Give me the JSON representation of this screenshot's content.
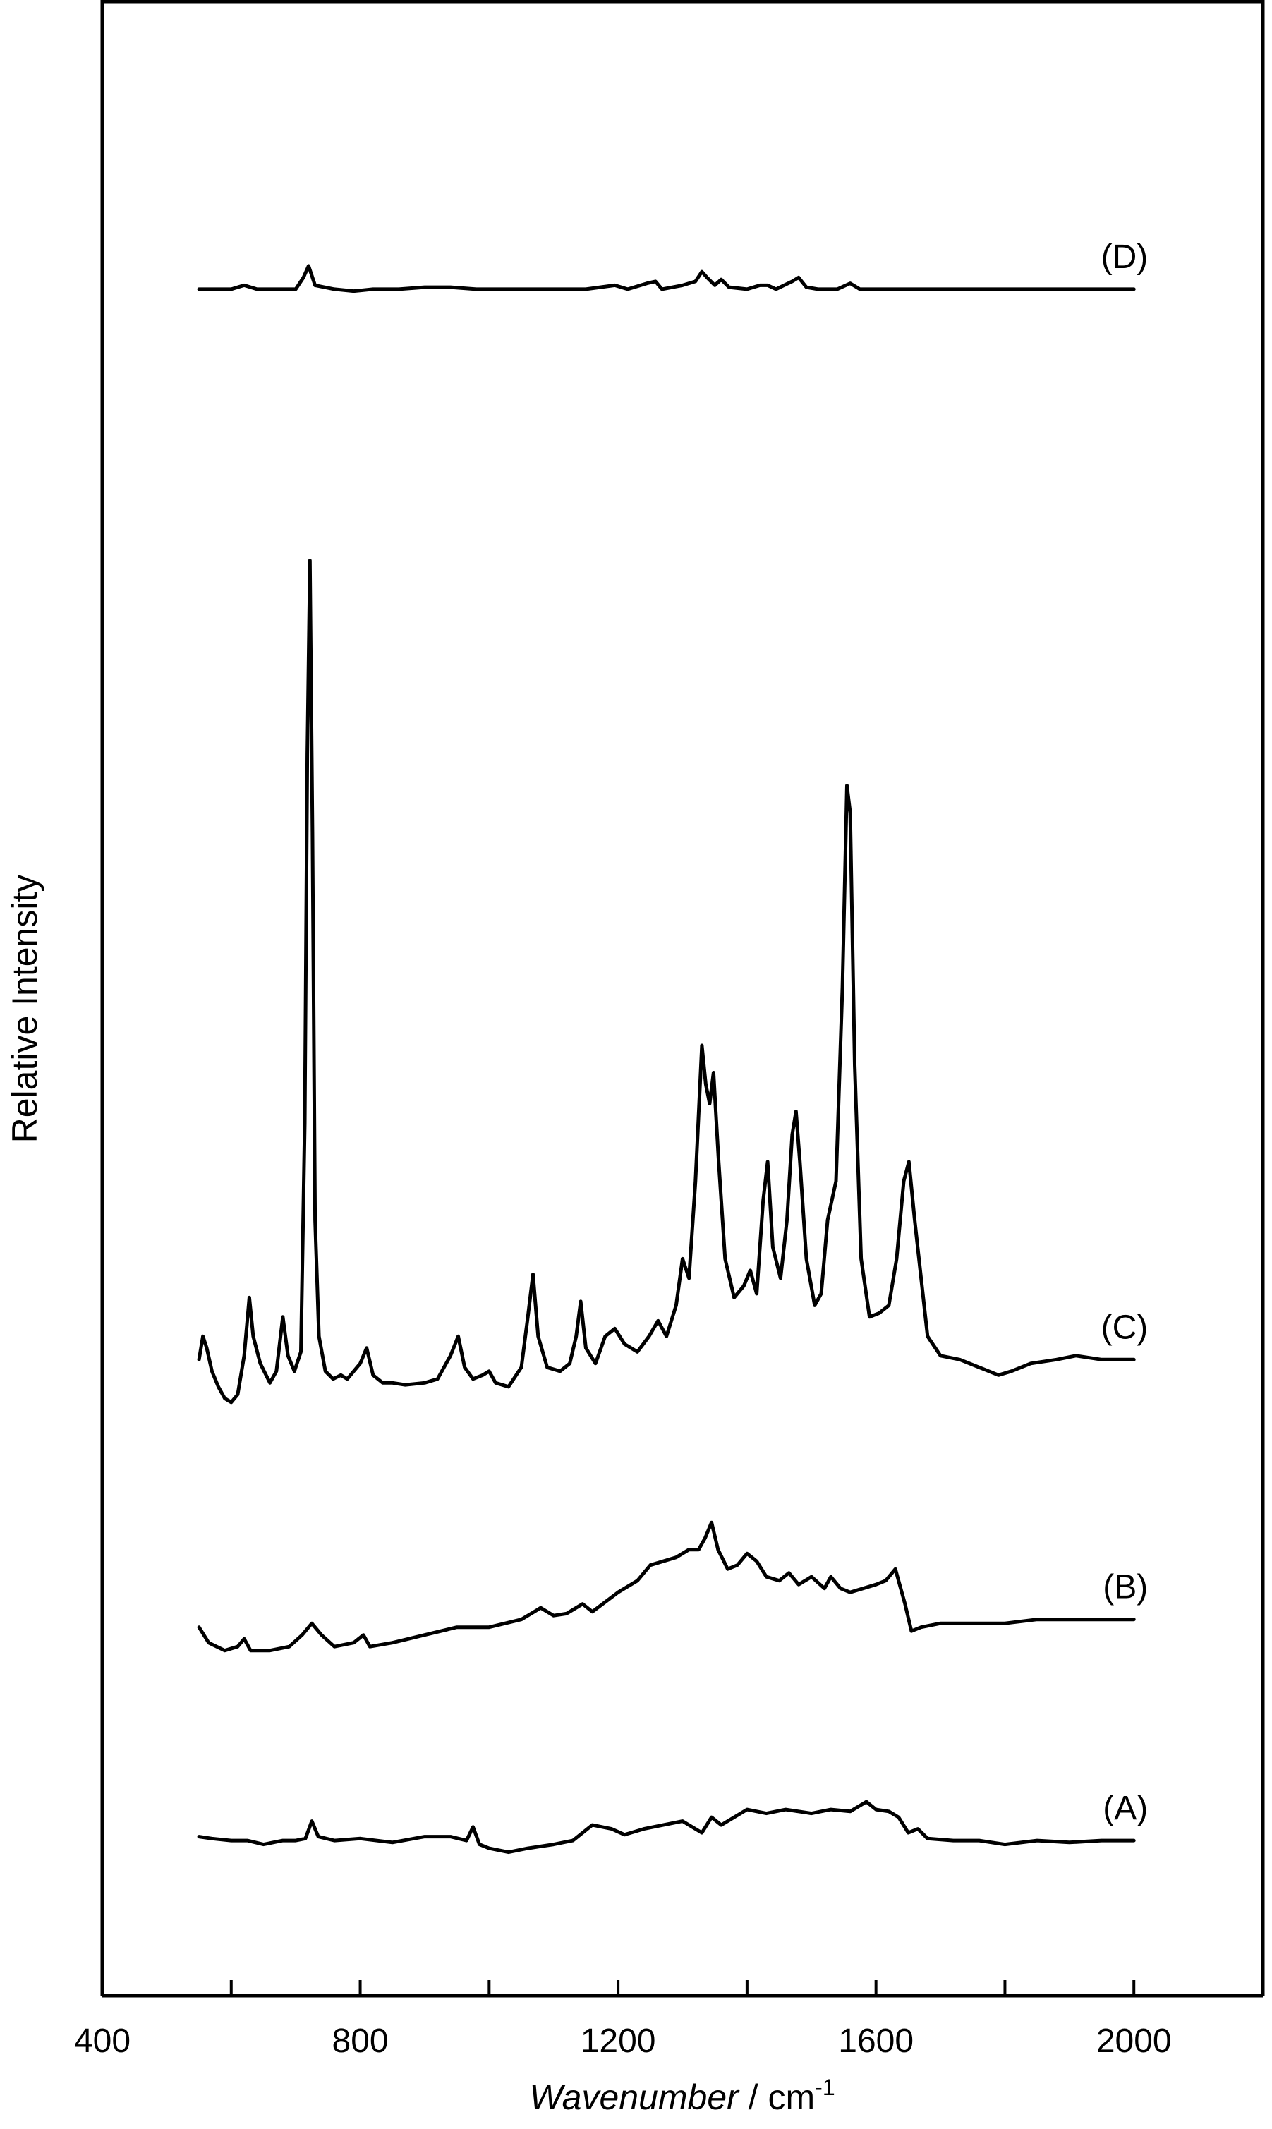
{
  "chart_data": {
    "type": "line",
    "title": "",
    "xlabel_italic": "Wavenumber",
    "xlabel_unit": " / cm",
    "xlabel_exponent": "-1",
    "ylabel": "Relative Intensity",
    "xlim": [
      400,
      2200
    ],
    "ylim": [
      0,
      10
    ],
    "x_ticks_major": [
      400,
      800,
      1200,
      1600,
      2000
    ],
    "x_tick_labels": [
      "400",
      "800",
      "1200",
      "1600",
      "2000"
    ],
    "x_ticks_minor": [
      600,
      1000,
      1400,
      1800
    ],
    "y_tick_labels": false,
    "grid": false,
    "series": [
      {
        "name": "(A)",
        "points": [
          [
            550,
            0.82
          ],
          [
            570,
            0.81
          ],
          [
            600,
            0.8
          ],
          [
            625,
            0.8
          ],
          [
            650,
            0.78
          ],
          [
            680,
            0.8
          ],
          [
            700,
            0.8
          ],
          [
            715,
            0.81
          ],
          [
            725,
            0.9
          ],
          [
            735,
            0.82
          ],
          [
            760,
            0.8
          ],
          [
            800,
            0.81
          ],
          [
            850,
            0.79
          ],
          [
            900,
            0.82
          ],
          [
            940,
            0.82
          ],
          [
            965,
            0.8
          ],
          [
            975,
            0.87
          ],
          [
            985,
            0.78
          ],
          [
            1000,
            0.76
          ],
          [
            1030,
            0.74
          ],
          [
            1060,
            0.76
          ],
          [
            1100,
            0.78
          ],
          [
            1130,
            0.8
          ],
          [
            1160,
            0.88
          ],
          [
            1190,
            0.86
          ],
          [
            1210,
            0.83
          ],
          [
            1240,
            0.86
          ],
          [
            1270,
            0.88
          ],
          [
            1300,
            0.9
          ],
          [
            1330,
            0.84
          ],
          [
            1345,
            0.92
          ],
          [
            1360,
            0.88
          ],
          [
            1380,
            0.92
          ],
          [
            1400,
            0.96
          ],
          [
            1430,
            0.94
          ],
          [
            1460,
            0.96
          ],
          [
            1500,
            0.94
          ],
          [
            1530,
            0.96
          ],
          [
            1560,
            0.95
          ],
          [
            1585,
            1.0
          ],
          [
            1600,
            0.96
          ],
          [
            1620,
            0.95
          ],
          [
            1635,
            0.92
          ],
          [
            1650,
            0.84
          ],
          [
            1665,
            0.86
          ],
          [
            1680,
            0.81
          ],
          [
            1720,
            0.8
          ],
          [
            1760,
            0.8
          ],
          [
            1800,
            0.78
          ],
          [
            1850,
            0.8
          ],
          [
            1900,
            0.79
          ],
          [
            1950,
            0.8
          ],
          [
            2000,
            0.8
          ]
        ]
      },
      {
        "name": "(B)",
        "points": [
          [
            550,
            1.9
          ],
          [
            565,
            1.82
          ],
          [
            590,
            1.78
          ],
          [
            610,
            1.8
          ],
          [
            620,
            1.84
          ],
          [
            630,
            1.78
          ],
          [
            660,
            1.78
          ],
          [
            690,
            1.8
          ],
          [
            710,
            1.86
          ],
          [
            725,
            1.92
          ],
          [
            740,
            1.86
          ],
          [
            760,
            1.8
          ],
          [
            790,
            1.82
          ],
          [
            805,
            1.86
          ],
          [
            815,
            1.8
          ],
          [
            850,
            1.82
          ],
          [
            900,
            1.86
          ],
          [
            950,
            1.9
          ],
          [
            1000,
            1.9
          ],
          [
            1050,
            1.94
          ],
          [
            1080,
            2.0
          ],
          [
            1100,
            1.96
          ],
          [
            1120,
            1.97
          ],
          [
            1145,
            2.02
          ],
          [
            1160,
            1.98
          ],
          [
            1200,
            2.08
          ],
          [
            1230,
            2.14
          ],
          [
            1250,
            2.22
          ],
          [
            1270,
            2.24
          ],
          [
            1290,
            2.26
          ],
          [
            1310,
            2.3
          ],
          [
            1325,
            2.3
          ],
          [
            1335,
            2.36
          ],
          [
            1345,
            2.44
          ],
          [
            1355,
            2.3
          ],
          [
            1370,
            2.2
          ],
          [
            1385,
            2.22
          ],
          [
            1400,
            2.28
          ],
          [
            1415,
            2.24
          ],
          [
            1430,
            2.16
          ],
          [
            1450,
            2.14
          ],
          [
            1465,
            2.18
          ],
          [
            1480,
            2.12
          ],
          [
            1500,
            2.16
          ],
          [
            1520,
            2.1
          ],
          [
            1530,
            2.16
          ],
          [
            1545,
            2.1
          ],
          [
            1560,
            2.08
          ],
          [
            1580,
            2.1
          ],
          [
            1600,
            2.12
          ],
          [
            1615,
            2.14
          ],
          [
            1630,
            2.2
          ],
          [
            1645,
            2.02
          ],
          [
            1655,
            1.88
          ],
          [
            1670,
            1.9
          ],
          [
            1700,
            1.92
          ],
          [
            1750,
            1.92
          ],
          [
            1800,
            1.92
          ],
          [
            1850,
            1.94
          ],
          [
            1900,
            1.94
          ],
          [
            1950,
            1.94
          ],
          [
            2000,
            1.94
          ]
        ]
      },
      {
        "name": "(C)",
        "points": [
          [
            550,
            3.28
          ],
          [
            556,
            3.4
          ],
          [
            562,
            3.34
          ],
          [
            570,
            3.22
          ],
          [
            580,
            3.14
          ],
          [
            590,
            3.08
          ],
          [
            600,
            3.06
          ],
          [
            610,
            3.1
          ],
          [
            620,
            3.3
          ],
          [
            628,
            3.6
          ],
          [
            634,
            3.4
          ],
          [
            645,
            3.26
          ],
          [
            660,
            3.16
          ],
          [
            670,
            3.22
          ],
          [
            680,
            3.5
          ],
          [
            688,
            3.3
          ],
          [
            698,
            3.22
          ],
          [
            708,
            3.32
          ],
          [
            714,
            4.5
          ],
          [
            718,
            6.4
          ],
          [
            722,
            7.4
          ],
          [
            726,
            6.0
          ],
          [
            730,
            4.0
          ],
          [
            736,
            3.4
          ],
          [
            746,
            3.22
          ],
          [
            758,
            3.18
          ],
          [
            770,
            3.2
          ],
          [
            780,
            3.18
          ],
          [
            790,
            3.22
          ],
          [
            800,
            3.26
          ],
          [
            810,
            3.34
          ],
          [
            820,
            3.2
          ],
          [
            835,
            3.16
          ],
          [
            850,
            3.16
          ],
          [
            870,
            3.15
          ],
          [
            900,
            3.16
          ],
          [
            920,
            3.18
          ],
          [
            940,
            3.3
          ],
          [
            952,
            3.4
          ],
          [
            962,
            3.24
          ],
          [
            975,
            3.18
          ],
          [
            990,
            3.2
          ],
          [
            1000,
            3.22
          ],
          [
            1010,
            3.16
          ],
          [
            1030,
            3.14
          ],
          [
            1050,
            3.24
          ],
          [
            1060,
            3.5
          ],
          [
            1068,
            3.72
          ],
          [
            1076,
            3.4
          ],
          [
            1090,
            3.24
          ],
          [
            1110,
            3.22
          ],
          [
            1125,
            3.26
          ],
          [
            1135,
            3.4
          ],
          [
            1142,
            3.58
          ],
          [
            1150,
            3.34
          ],
          [
            1165,
            3.26
          ],
          [
            1180,
            3.4
          ],
          [
            1195,
            3.44
          ],
          [
            1210,
            3.36
          ],
          [
            1230,
            3.32
          ],
          [
            1248,
            3.4
          ],
          [
            1262,
            3.48
          ],
          [
            1275,
            3.4
          ],
          [
            1290,
            3.56
          ],
          [
            1300,
            3.8
          ],
          [
            1310,
            3.7
          ],
          [
            1320,
            4.2
          ],
          [
            1330,
            4.9
          ],
          [
            1336,
            4.7
          ],
          [
            1342,
            4.6
          ],
          [
            1348,
            4.76
          ],
          [
            1356,
            4.3
          ],
          [
            1366,
            3.8
          ],
          [
            1380,
            3.6
          ],
          [
            1395,
            3.66
          ],
          [
            1405,
            3.74
          ],
          [
            1415,
            3.62
          ],
          [
            1425,
            4.1
          ],
          [
            1432,
            4.3
          ],
          [
            1440,
            3.86
          ],
          [
            1452,
            3.7
          ],
          [
            1462,
            4.0
          ],
          [
            1470,
            4.44
          ],
          [
            1476,
            4.56
          ],
          [
            1482,
            4.3
          ],
          [
            1492,
            3.8
          ],
          [
            1505,
            3.56
          ],
          [
            1515,
            3.62
          ],
          [
            1525,
            4.0
          ],
          [
            1538,
            4.2
          ],
          [
            1548,
            5.2
          ],
          [
            1555,
            6.24
          ],
          [
            1560,
            6.1
          ],
          [
            1567,
            4.8
          ],
          [
            1577,
            3.8
          ],
          [
            1590,
            3.5
          ],
          [
            1605,
            3.52
          ],
          [
            1620,
            3.56
          ],
          [
            1632,
            3.8
          ],
          [
            1643,
            4.2
          ],
          [
            1651,
            4.3
          ],
          [
            1660,
            4.0
          ],
          [
            1670,
            3.7
          ],
          [
            1680,
            3.4
          ],
          [
            1700,
            3.3
          ],
          [
            1730,
            3.28
          ],
          [
            1760,
            3.24
          ],
          [
            1790,
            3.2
          ],
          [
            1810,
            3.22
          ],
          [
            1840,
            3.26
          ],
          [
            1880,
            3.28
          ],
          [
            1910,
            3.3
          ],
          [
            1950,
            3.28
          ],
          [
            2000,
            3.28
          ]
        ]
      },
      {
        "name": "(D)",
        "points": [
          [
            550,
            8.8
          ],
          [
            600,
            8.8
          ],
          [
            620,
            8.82
          ],
          [
            640,
            8.8
          ],
          [
            680,
            8.8
          ],
          [
            700,
            8.8
          ],
          [
            712,
            8.86
          ],
          [
            720,
            8.92
          ],
          [
            730,
            8.82
          ],
          [
            760,
            8.8
          ],
          [
            790,
            8.79
          ],
          [
            820,
            8.8
          ],
          [
            860,
            8.8
          ],
          [
            900,
            8.81
          ],
          [
            940,
            8.81
          ],
          [
            980,
            8.8
          ],
          [
            1020,
            8.8
          ],
          [
            1060,
            8.8
          ],
          [
            1100,
            8.8
          ],
          [
            1150,
            8.8
          ],
          [
            1195,
            8.82
          ],
          [
            1215,
            8.8
          ],
          [
            1245,
            8.83
          ],
          [
            1258,
            8.84
          ],
          [
            1268,
            8.8
          ],
          [
            1300,
            8.82
          ],
          [
            1320,
            8.84
          ],
          [
            1330,
            8.89
          ],
          [
            1338,
            8.86
          ],
          [
            1350,
            8.82
          ],
          [
            1360,
            8.85
          ],
          [
            1372,
            8.81
          ],
          [
            1400,
            8.8
          ],
          [
            1420,
            8.82
          ],
          [
            1432,
            8.82
          ],
          [
            1445,
            8.8
          ],
          [
            1470,
            8.84
          ],
          [
            1480,
            8.86
          ],
          [
            1492,
            8.81
          ],
          [
            1510,
            8.8
          ],
          [
            1540,
            8.8
          ],
          [
            1560,
            8.83
          ],
          [
            1575,
            8.8
          ],
          [
            1600,
            8.8
          ],
          [
            1650,
            8.8
          ],
          [
            1700,
            8.8
          ],
          [
            1800,
            8.8
          ],
          [
            1900,
            8.8
          ],
          [
            2000,
            8.8
          ]
        ]
      }
    ]
  }
}
